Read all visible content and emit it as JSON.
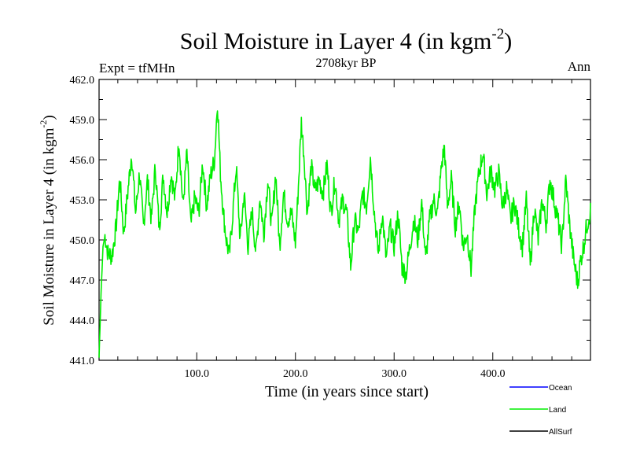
{
  "chart_data": {
    "type": "line",
    "title": "Soil Moisture in Layer 4 (in kgm",
    "title_sup": "-2",
    "title_close": ")",
    "subtitle": "2708kyr BP",
    "left_label": "Expt = tfMHn",
    "right_label": "Ann",
    "xlabel": "Time (in years since start)",
    "ylabel": "Soil Moisture in Layer 4 (in kgm",
    "ylabel_sup": "-2",
    "ylabel_close": ")",
    "xlim": [
      1,
      499
    ],
    "ylim": [
      441.0,
      462.0
    ],
    "x_ticks": [
      100,
      200,
      300,
      400
    ],
    "x_tick_labels": [
      "100.0",
      "200.0",
      "300.0",
      "400.0"
    ],
    "y_ticks": [
      441,
      444,
      447,
      450,
      453,
      456,
      459,
      462
    ],
    "y_tick_labels": [
      "441.0",
      "444.0",
      "447.0",
      "450.0",
      "453.0",
      "456.0",
      "459.0",
      "462.0"
    ],
    "legend": [
      {
        "name": "Ocean",
        "color": "#0000ff"
      },
      {
        "name": "Land",
        "color": "#00ee00"
      },
      {
        "name": "AllSurf",
        "color": "#000000"
      }
    ],
    "series": [
      {
        "name": "Land",
        "color": "#00ee00",
        "x_start": 1,
        "x_end": 499,
        "keypoints": [
          [
            1,
            441.2
          ],
          [
            3,
            446.0
          ],
          [
            5,
            449.5
          ],
          [
            7,
            450.3
          ],
          [
            10,
            449.0
          ],
          [
            14,
            448.8
          ],
          [
            18,
            450.8
          ],
          [
            22,
            454.6
          ],
          [
            26,
            450.5
          ],
          [
            30,
            453.5
          ],
          [
            34,
            456.5
          ],
          [
            38,
            452.0
          ],
          [
            42,
            455.0
          ],
          [
            46,
            451.0
          ],
          [
            50,
            454.5
          ],
          [
            54,
            451.5
          ],
          [
            58,
            455.5
          ],
          [
            62,
            450.8
          ],
          [
            66,
            454.8
          ],
          [
            70,
            452.0
          ],
          [
            74,
            455.0
          ],
          [
            78,
            453.0
          ],
          [
            82,
            457.5
          ],
          [
            86,
            452.5
          ],
          [
            90,
            456.5
          ],
          [
            94,
            451.0
          ],
          [
            98,
            453.2
          ],
          [
            102,
            452.0
          ],
          [
            106,
            455.8
          ],
          [
            110,
            452.5
          ],
          [
            114,
            454.8
          ],
          [
            118,
            456.0
          ],
          [
            121,
            460.4
          ],
          [
            124,
            455.0
          ],
          [
            127,
            452.0
          ],
          [
            130,
            450.0
          ],
          [
            133,
            448.8
          ],
          [
            136,
            451.5
          ],
          [
            140,
            455.5
          ],
          [
            144,
            450.0
          ],
          [
            148,
            453.5
          ],
          [
            152,
            449.5
          ],
          [
            156,
            452.2
          ],
          [
            160,
            449.0
          ],
          [
            164,
            453.2
          ],
          [
            168,
            450.5
          ],
          [
            172,
            454.5
          ],
          [
            176,
            451.0
          ],
          [
            180,
            455.0
          ],
          [
            184,
            449.5
          ],
          [
            188,
            453.5
          ],
          [
            192,
            451.5
          ],
          [
            196,
            452.0
          ],
          [
            200,
            449.8
          ],
          [
            203,
            454.0
          ],
          [
            206,
            458.8
          ],
          [
            209,
            456.0
          ],
          [
            212,
            452.0
          ],
          [
            216,
            455.5
          ],
          [
            220,
            453.6
          ],
          [
            224,
            454.5
          ],
          [
            228,
            453.5
          ],
          [
            232,
            455.6
          ],
          [
            236,
            452.0
          ],
          [
            240,
            454.5
          ],
          [
            244,
            451.5
          ],
          [
            248,
            453.0
          ],
          [
            252,
            452.0
          ],
          [
            256,
            448.0
          ],
          [
            260,
            451.5
          ],
          [
            264,
            450.5
          ],
          [
            268,
            453.5
          ],
          [
            272,
            452.5
          ],
          [
            276,
            456.2
          ],
          [
            280,
            452.0
          ],
          [
            284,
            449.0
          ],
          [
            288,
            452.0
          ],
          [
            292,
            448.5
          ],
          [
            296,
            451.0
          ],
          [
            300,
            449.5
          ],
          [
            304,
            452.0
          ],
          [
            308,
            448.0
          ],
          [
            312,
            447.4
          ],
          [
            316,
            449.5
          ],
          [
            320,
            451.5
          ],
          [
            324,
            450.0
          ],
          [
            328,
            452.8
          ],
          [
            332,
            448.5
          ],
          [
            336,
            451.5
          ],
          [
            340,
            453.0
          ],
          [
            344,
            452.0
          ],
          [
            348,
            455.5
          ],
          [
            351,
            457.0
          ],
          [
            354,
            452.5
          ],
          [
            358,
            454.5
          ],
          [
            362,
            451.0
          ],
          [
            366,
            452.8
          ],
          [
            370,
            449.5
          ],
          [
            374,
            450.5
          ],
          [
            378,
            447.8
          ],
          [
            382,
            452.5
          ],
          [
            386,
            455.0
          ],
          [
            390,
            456.5
          ],
          [
            394,
            453.5
          ],
          [
            398,
            455.2
          ],
          [
            402,
            453.8
          ],
          [
            406,
            455.0
          ],
          [
            410,
            452.5
          ],
          [
            414,
            453.8
          ],
          [
            418,
            451.5
          ],
          [
            422,
            452.8
          ],
          [
            426,
            451.0
          ],
          [
            430,
            449.5
          ],
          [
            434,
            453.0
          ],
          [
            438,
            448.0
          ],
          [
            442,
            452.5
          ],
          [
            446,
            450.0
          ],
          [
            450,
            453.0
          ],
          [
            454,
            451.2
          ],
          [
            458,
            454.5
          ],
          [
            462,
            453.0
          ],
          [
            466,
            451.5
          ],
          [
            470,
            449.5
          ],
          [
            474,
            454.5
          ],
          [
            478,
            451.0
          ],
          [
            482,
            448.5
          ],
          [
            486,
            446.8
          ],
          [
            489,
            448.5
          ],
          [
            492,
            449.5
          ],
          [
            495,
            451.0
          ],
          [
            499,
            452.2
          ]
        ]
      }
    ]
  }
}
